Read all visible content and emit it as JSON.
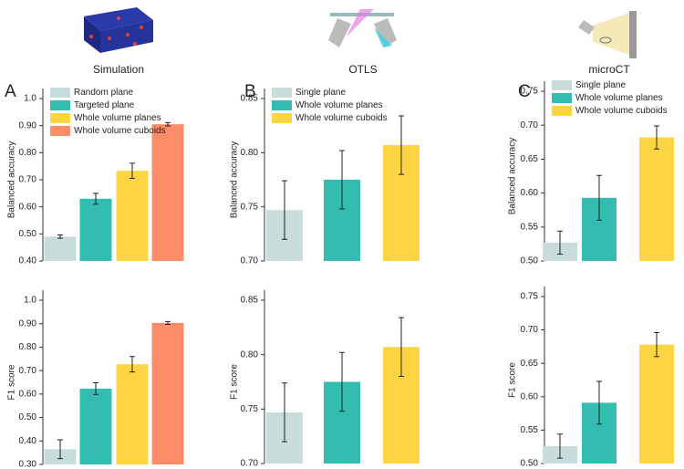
{
  "chart_data": [
    {
      "type": "bar",
      "panel_label": "A",
      "title": "Simulation",
      "ylabel": "Balanced accuracy",
      "categories": [
        "Random plane",
        "Targeted plane",
        "Whole volume planes",
        "Whole volume cuboids"
      ],
      "colors": [
        "#c8dcdb",
        "#33bdb0",
        "#fdd543",
        "#fd8c69"
      ],
      "values": [
        0.49,
        0.63,
        0.733,
        0.905
      ],
      "errors": [
        0.006,
        0.02,
        0.028,
        0.006
      ],
      "ylim": [
        0.4,
        1.0
      ],
      "yticks": [
        {
          "value": 0.4,
          "label": "0.40"
        },
        {
          "value": 0.5,
          "label": "0.50"
        },
        {
          "value": 0.6,
          "label": "0.60"
        },
        {
          "value": 0.7,
          "label": "0.70"
        },
        {
          "value": 0.8,
          "label": "0.80"
        },
        {
          "value": 0.9,
          "label": "0.90"
        },
        {
          "value": 1.0,
          "label": "1.0"
        }
      ]
    },
    {
      "type": "bar",
      "panel_label": "B",
      "title": "OTLS",
      "ylabel": "Balanced accuracy",
      "categories": [
        "Single plane",
        "Whole volume planes",
        "Whole volume cuboids"
      ],
      "colors": [
        "#c8dcdb",
        "#33bdb0",
        "#fdd543"
      ],
      "values": [
        0.747,
        0.775,
        0.807
      ],
      "errors": [
        0.027,
        0.027,
        0.027
      ],
      "ylim": [
        0.7,
        0.85
      ],
      "yticks": [
        {
          "value": 0.7,
          "label": "0.70"
        },
        0.75,
        {
          "value": 0.8,
          "label": "0.80"
        },
        0.85
      ]
    },
    {
      "type": "bar",
      "panel_label": "C",
      "title": "microCT",
      "ylabel": "Balanced accuracy",
      "categories": [
        "Single plane",
        "Whole volume planes",
        "Whole volume cuboids"
      ],
      "colors": [
        "#c8dcdb",
        "#33bdb0",
        "#fdd543"
      ],
      "values": [
        0.527,
        0.593,
        0.682
      ],
      "errors": [
        0.017,
        0.033,
        0.017
      ],
      "ylim": [
        0.5,
        0.75
      ],
      "yticks": [
        {
          "value": 0.5,
          "label": "0.50"
        },
        0.55,
        {
          "value": 0.6,
          "label": "0.60"
        },
        0.65,
        {
          "value": 0.7,
          "label": "0.70"
        },
        0.75
      ]
    },
    {
      "type": "bar",
      "ylabel": "F1 score",
      "colors": [
        "#c8dcdb",
        "#33bdb0",
        "#fdd543",
        "#fd8c69"
      ],
      "values": [
        0.365,
        0.623,
        0.727,
        0.903
      ],
      "errors": [
        0.04,
        0.025,
        0.033,
        0.006
      ],
      "ylim": [
        0.3,
        1.0
      ],
      "yticks": [
        {
          "value": 0.3,
          "label": "0.30"
        },
        {
          "value": 0.4,
          "label": "0.40"
        },
        {
          "value": 0.5,
          "label": "0.50"
        },
        {
          "value": 0.6,
          "label": "0.60"
        },
        {
          "value": 0.7,
          "label": "0.70"
        },
        {
          "value": 0.8,
          "label": "0.80"
        },
        {
          "value": 0.9,
          "label": "0.90"
        },
        {
          "value": 1.0,
          "label": "1.0"
        }
      ]
    },
    {
      "type": "bar",
      "ylabel": "F1 score",
      "colors": [
        "#c8dcdb",
        "#33bdb0",
        "#fdd543"
      ],
      "values": [
        0.747,
        0.775,
        0.807
      ],
      "errors": [
        0.027,
        0.027,
        0.027
      ],
      "ylim": [
        0.7,
        0.85
      ],
      "yticks": [
        {
          "value": 0.7,
          "label": "0.70"
        },
        0.75,
        {
          "value": 0.8,
          "label": "0.80"
        },
        0.85
      ]
    },
    {
      "type": "bar",
      "ylabel": "F1 score",
      "colors": [
        "#c8dcdb",
        "#33bdb0",
        "#fdd543"
      ],
      "values": [
        0.526,
        0.591,
        0.678
      ],
      "errors": [
        0.018,
        0.032,
        0.018
      ],
      "ylim": [
        0.5,
        0.75
      ],
      "yticks": [
        {
          "value": 0.5,
          "label": "0.50"
        },
        0.55,
        {
          "value": 0.6,
          "label": "0.60"
        },
        0.65,
        {
          "value": 0.7,
          "label": "0.70"
        },
        0.75
      ]
    }
  ]
}
